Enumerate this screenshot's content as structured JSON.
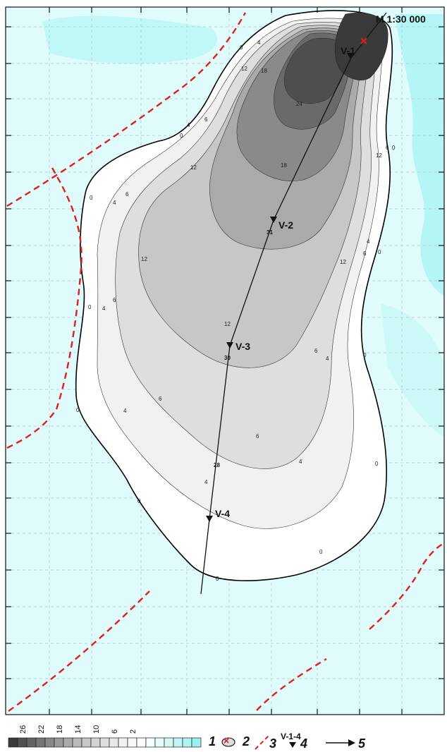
{
  "map": {
    "scale_label": "M 1:30 000",
    "colors": {
      "water_light": "#dffbfb",
      "water_cyan": "#aef3f4",
      "fault": "#e0201c",
      "outline": "#000000",
      "marker": "#e0201c"
    },
    "isolines": [
      {
        "label": "0"
      },
      {
        "label": "4"
      },
      {
        "label": "6"
      },
      {
        "label": "12"
      },
      {
        "label": "18"
      },
      {
        "label": "24"
      }
    ],
    "wells": [
      {
        "id": "V-1",
        "label": "V-1",
        "depth": ""
      },
      {
        "id": "V-2",
        "label": "V-2",
        "depth": "31"
      },
      {
        "id": "V-3",
        "label": "V-3",
        "depth": "30"
      },
      {
        "id": "V-4",
        "label": "V-4",
        "depth": "28"
      }
    ],
    "contour_labels": {
      "zero": "0",
      "four": "4",
      "six": "6",
      "twelve": "12",
      "eighteen": "18",
      "twentyfour": "24"
    }
  },
  "legend": {
    "ticks": [
      "26",
      "22",
      "18",
      "14",
      "10",
      "6",
      "2"
    ],
    "shades": [
      "#3b3b3b",
      "#505050",
      "#636363",
      "#767676",
      "#888888",
      "#9a9a9a",
      "#aaaaaa",
      "#b9b9b9",
      "#c7c7c7",
      "#d3d3d3",
      "#dedede",
      "#e8e8e8",
      "#f1f1f1",
      "#f8f8f8",
      "#fcfcfc",
      "#f2fdfd",
      "#e4fbfb",
      "#d2f8f8",
      "#bff5f6",
      "#aef3f4",
      "#9aeff1"
    ],
    "item1_number": "1",
    "item2_number": "2",
    "item3_number": "3",
    "item4_number": "4",
    "item4_sup": "V-1-4",
    "item5_number": "5"
  }
}
